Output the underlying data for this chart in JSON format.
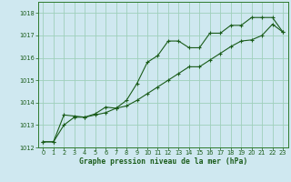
{
  "title": "Graphe pression niveau de la mer (hPa)",
  "background_color": "#cfe8f0",
  "grid_color": "#9ecfbb",
  "line_color": "#1a5c1a",
  "spine_color": "#2d7a2d",
  "xlim": [
    -0.5,
    23.5
  ],
  "ylim": [
    1012,
    1018.5
  ],
  "xticks": [
    0,
    1,
    2,
    3,
    4,
    5,
    6,
    7,
    8,
    9,
    10,
    11,
    12,
    13,
    14,
    15,
    16,
    17,
    18,
    19,
    20,
    21,
    22,
    23
  ],
  "yticks": [
    1012,
    1013,
    1014,
    1015,
    1016,
    1017,
    1018
  ],
  "series1_x": [
    0,
    1,
    2,
    3,
    4,
    5,
    6,
    7,
    8,
    9,
    10,
    11,
    12,
    13,
    14,
    15,
    16,
    17,
    18,
    19,
    20,
    21,
    22,
    23
  ],
  "series1_y": [
    1012.25,
    1012.25,
    1013.45,
    1013.4,
    1013.35,
    1013.5,
    1013.8,
    1013.75,
    1014.1,
    1014.85,
    1015.8,
    1016.1,
    1016.75,
    1016.75,
    1016.45,
    1016.45,
    1017.1,
    1017.1,
    1017.45,
    1017.45,
    1017.8,
    1017.8,
    1017.8,
    1017.15
  ],
  "series2_x": [
    0,
    1,
    2,
    3,
    4,
    5,
    6,
    7,
    8,
    9,
    10,
    11,
    12,
    13,
    14,
    15,
    16,
    17,
    18,
    19,
    20,
    21,
    22,
    23
  ],
  "series2_y": [
    1012.25,
    1012.25,
    1013.0,
    1013.35,
    1013.35,
    1013.45,
    1013.55,
    1013.75,
    1013.85,
    1014.1,
    1014.4,
    1014.7,
    1015.0,
    1015.3,
    1015.6,
    1015.6,
    1015.9,
    1016.2,
    1016.5,
    1016.75,
    1016.8,
    1017.0,
    1017.5,
    1017.15
  ]
}
